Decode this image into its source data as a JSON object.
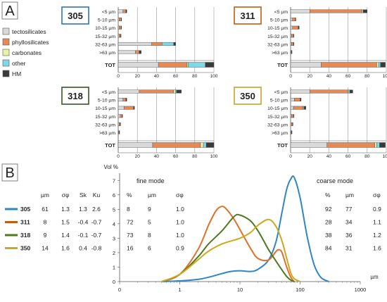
{
  "panels": {
    "a_label": "A",
    "b_label": "B"
  },
  "legend_a": [
    {
      "name": "tectosilicates",
      "color": "#d9d9d9"
    },
    {
      "name": "phyllosilicates",
      "color": "#e58a55"
    },
    {
      "name": "carbonates",
      "color": "#e9f1a6"
    },
    {
      "name": "other",
      "color": "#7fd8e8"
    },
    {
      "name": "HM",
      "color": "#3a3a3a"
    }
  ],
  "chart_data": [
    {
      "type": "bar",
      "stacked": true,
      "orientation": "horizontal",
      "categories": [
        "<5 µm",
        "5-10 µm",
        "10-15 µm",
        "15-32 µm",
        "32-63 µm",
        ">63 µm",
        "TOT"
      ],
      "xlim": [
        0,
        100
      ],
      "xticks": [
        "0",
        "20",
        "40",
        "60",
        "80",
        "100"
      ],
      "charts": [
        {
          "sample": "305",
          "color": "#2e75b6",
          "rows": [
            [
              5,
              3,
              0,
              0,
              1
            ],
            [
              1,
              2,
              0,
              0,
              0.5
            ],
            [
              1,
              2,
              0,
              0,
              0.5
            ],
            [
              1,
              1.5,
              0,
              0,
              0.5
            ],
            [
              35,
              10,
              1,
              12,
              2
            ],
            [
              18,
              4,
              0,
              0,
              2
            ],
            [
              42,
              30,
              1,
              18,
              9
            ]
          ]
        },
        {
          "sample": "311",
          "color": "#c55a11",
          "rows": [
            [
              20,
              54,
              1,
              1,
              4
            ],
            [
              2,
              3,
              0,
              0,
              0.5
            ],
            [
              2,
              6,
              0,
              0,
              1
            ],
            [
              1,
              2,
              0,
              0,
              0.5
            ],
            [
              1,
              2,
              0,
              0,
              0.5
            ],
            [
              0.5,
              0.5,
              0,
              0,
              0.5
            ],
            [
              32,
              58,
              2,
              2,
              5
            ]
          ]
        },
        {
          "sample": "318",
          "color": "#375623",
          "rows": [
            [
              22,
              36,
              2,
              1,
              5
            ],
            [
              5,
              3,
              0,
              0,
              1
            ],
            [
              6,
              10,
              0,
              0,
              1
            ],
            [
              2,
              2,
              0,
              0,
              0.5
            ],
            [
              1,
              1,
              0,
              0,
              0.5
            ],
            [
              0.5,
              0.5,
              0,
              0,
              0.5
            ],
            [
              36,
              50,
              3,
              3,
              8
            ]
          ]
        },
        {
          "sample": "350",
          "color": "#c9a227",
          "rows": [
            [
              20,
              40,
              1,
              1,
              3
            ],
            [
              4,
              6,
              0,
              0,
              1
            ],
            [
              3,
              10,
              0,
              1,
              2
            ],
            [
              1,
              2,
              0,
              0,
              0.5
            ],
            [
              1,
              1,
              0,
              0,
              0.5
            ],
            [
              0.5,
              0.5,
              0,
              0,
              0.5
            ],
            [
              38,
              50,
              2,
              3,
              6
            ]
          ]
        }
      ]
    },
    {
      "type": "line",
      "xscale": "log",
      "xlim": [
        0.1,
        1000
      ],
      "xticks": [
        "0",
        "1",
        "10",
        "100",
        "1000"
      ],
      "xlabel": "µm",
      "ylabel": "Vol %",
      "ylim": [
        0,
        7.5
      ],
      "yticks": [
        "0",
        "1",
        "2",
        "3",
        "4",
        "5",
        "6",
        "7"
      ],
      "series": [
        {
          "name": "305",
          "color": "#2e86c9",
          "x": [
            0.5,
            1,
            2,
            3,
            5,
            7,
            10,
            15,
            20,
            30,
            40,
            50,
            60,
            70,
            80,
            100,
            130,
            170,
            220,
            300
          ],
          "y": [
            0,
            0.05,
            0.15,
            0.3,
            0.55,
            0.7,
            0.75,
            0.7,
            0.85,
            1.5,
            2.8,
            4.8,
            6.4,
            7.1,
            7.2,
            5.8,
            3.2,
            1.2,
            0.3,
            0
          ]
        },
        {
          "name": "311",
          "color": "#e0702a",
          "x": [
            0.5,
            1,
            2,
            3,
            4,
            5,
            6,
            8,
            10,
            15,
            20,
            30,
            40,
            45,
            50,
            60,
            70,
            80
          ],
          "y": [
            0,
            0.5,
            2.2,
            3.9,
            4.9,
            5.2,
            5.0,
            4.3,
            3.6,
            2.3,
            1.6,
            1.5,
            2.1,
            2.2,
            2.0,
            1.0,
            0.3,
            0
          ]
        },
        {
          "name": "318",
          "color": "#4d7a1f",
          "x": [
            0.5,
            1,
            2,
            3,
            5,
            8,
            10,
            15,
            20,
            25,
            30,
            40,
            50,
            60,
            70,
            80
          ],
          "y": [
            0,
            0.5,
            1.7,
            2.6,
            3.5,
            4.5,
            4.6,
            4.2,
            3.5,
            2.8,
            2.2,
            1.4,
            0.8,
            0.35,
            0.1,
            0
          ]
        },
        {
          "name": "350",
          "color": "#cfa81c",
          "x": [
            0.5,
            1,
            2,
            3,
            5,
            10,
            15,
            20,
            30,
            40,
            50,
            60,
            70,
            80,
            100
          ],
          "y": [
            0,
            0.5,
            1.5,
            2.1,
            2.6,
            3.0,
            3.4,
            3.9,
            4.3,
            3.8,
            2.8,
            1.6,
            0.6,
            0.2,
            0
          ]
        }
      ]
    }
  ],
  "stats": {
    "headers": [
      "µm",
      "σφ",
      "Sk",
      "Ku"
    ],
    "rows": [
      {
        "sample": "305",
        "color": "#2e86c9",
        "values": [
          "61",
          "1.3",
          "1.3",
          "2.6"
        ]
      },
      {
        "sample": "311",
        "color": "#c55a11",
        "values": [
          "8",
          "1.5",
          "-0.4",
          "-0.7"
        ]
      },
      {
        "sample": "318",
        "color": "#4d7a1f",
        "values": [
          "9",
          "1.4",
          "-0.1",
          "-0.7"
        ]
      },
      {
        "sample": "350",
        "color": "#cfa81c",
        "values": [
          "14",
          "1.6",
          "0.4",
          "-0.8"
        ]
      }
    ]
  },
  "fine_mode": {
    "title": "fine mode",
    "headers": [
      "%",
      "µm",
      "σφ"
    ],
    "rows": [
      [
        "8",
        "9",
        "1.0"
      ],
      [
        "72",
        "5",
        "1.0"
      ],
      [
        "73",
        "8",
        "1.0"
      ],
      [
        "16",
        "6",
        "0.9"
      ]
    ]
  },
  "coarse_mode": {
    "title": "coarse mode",
    "headers": [
      "%",
      "µm",
      "σφ"
    ],
    "rows": [
      [
        "92",
        "77",
        "0.9"
      ],
      [
        "28",
        "34",
        "1.1"
      ],
      [
        "38",
        "36",
        "1.2"
      ],
      [
        "84",
        "31",
        "1.6"
      ]
    ]
  }
}
